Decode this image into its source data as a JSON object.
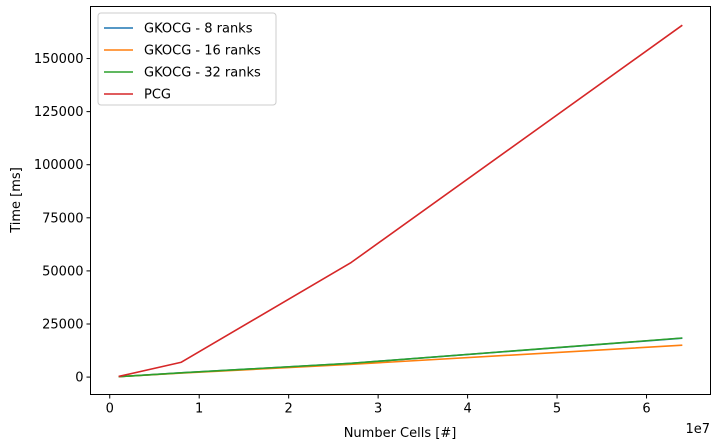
{
  "chart_data": {
    "type": "line",
    "xlabel": "Number Cells [#]",
    "ylabel": "Time [ms]",
    "x_multiplier_label": "1e7",
    "xlim": [
      -2150000,
      67150000
    ],
    "ylim": [
      -8200,
      174500
    ],
    "xticks": [
      {
        "value": 0,
        "label": "0"
      },
      {
        "value": 10000000,
        "label": "1"
      },
      {
        "value": 20000000,
        "label": "2"
      },
      {
        "value": 30000000,
        "label": "3"
      },
      {
        "value": 40000000,
        "label": "4"
      },
      {
        "value": 50000000,
        "label": "5"
      },
      {
        "value": 60000000,
        "label": "6"
      }
    ],
    "yticks": [
      {
        "value": 0,
        "label": "0"
      },
      {
        "value": 25000,
        "label": "25000"
      },
      {
        "value": 50000,
        "label": "50000"
      },
      {
        "value": 75000,
        "label": "75000"
      },
      {
        "value": 100000,
        "label": "100000"
      },
      {
        "value": 125000,
        "label": "125000"
      },
      {
        "value": 150000,
        "label": "150000"
      }
    ],
    "grid": false,
    "legend": "top-left",
    "series": [
      {
        "name": "GKOCG - 8 ranks",
        "color": "#1f77b4",
        "x": [
          1000000,
          8000000,
          27000000,
          64000000
        ],
        "y": [
          200,
          2000,
          6500,
          18300
        ]
      },
      {
        "name": "GKOCG - 16 ranks",
        "color": "#ff7f0e",
        "x": [
          1000000,
          8000000,
          27000000,
          64000000
        ],
        "y": [
          200,
          1900,
          6000,
          15000
        ]
      },
      {
        "name": "GKOCG - 32 ranks",
        "color": "#2ca02c",
        "x": [
          1000000,
          8000000,
          27000000,
          64000000
        ],
        "y": [
          200,
          2000,
          6500,
          18400
        ]
      },
      {
        "name": "PCG",
        "color": "#d62728",
        "x": [
          1000000,
          8000000,
          27000000,
          64000000
        ],
        "y": [
          300,
          7000,
          54000,
          165700
        ]
      }
    ]
  }
}
